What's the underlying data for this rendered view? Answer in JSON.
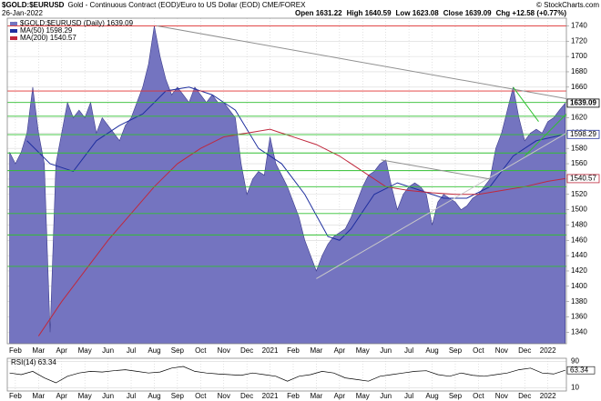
{
  "chart_data": {
    "type": "area",
    "symbol": "$GOLD:$EURUSD",
    "title": "Gold - Continuous Contract (EOD)/Euro to US Dollar (EOD) CME/FOREX",
    "source": "© StockCharts.com",
    "date": "26-Jan-2022",
    "quote": [
      "Open 1631.22",
      "High 1640.59",
      "Low 1623.08",
      "Close 1639.09",
      "Chg +12.58 (+0.77%)"
    ],
    "xlim": [
      0.65,
      24.8
    ],
    "xticks": [
      {
        "value": 1,
        "label": "Feb"
      },
      {
        "value": 2,
        "label": "Mar"
      },
      {
        "value": 3,
        "label": "Apr"
      },
      {
        "value": 4,
        "label": "May"
      },
      {
        "value": 5,
        "label": "Jun"
      },
      {
        "value": 6,
        "label": "Jul"
      },
      {
        "value": 7,
        "label": "Aug"
      },
      {
        "value": 8,
        "label": "Sep"
      },
      {
        "value": 9,
        "label": "Oct"
      },
      {
        "value": 10,
        "label": "Nov"
      },
      {
        "value": 11,
        "label": "Dec"
      },
      {
        "value": 12,
        "label": "2021"
      },
      {
        "value": 13,
        "label": "Feb"
      },
      {
        "value": 14,
        "label": "Mar"
      },
      {
        "value": 15,
        "label": "Apr"
      },
      {
        "value": 16,
        "label": "May"
      },
      {
        "value": 17,
        "label": "Jun"
      },
      {
        "value": 18,
        "label": "Jul"
      },
      {
        "value": 19,
        "label": "Aug"
      },
      {
        "value": 20,
        "label": "Sep"
      },
      {
        "value": 21,
        "label": "Oct"
      },
      {
        "value": 22,
        "label": "Nov"
      },
      {
        "value": 23,
        "label": "Dec"
      },
      {
        "value": 24,
        "label": "2022"
      }
    ],
    "ylim": [
      1325,
      1750
    ],
    "yticks": [
      1340,
      1360,
      1380,
      1400,
      1420,
      1440,
      1460,
      1480,
      1500,
      1520,
      1540,
      1560,
      1580,
      1600,
      1620,
      1640,
      1660,
      1680,
      1700,
      1720,
      1740
    ],
    "grid": true,
    "series": [
      {
        "name": "$GOLD:$EURUSD (Daily) 1639.09",
        "color": "#7474c0",
        "x": [
          0.75,
          1,
          1.25,
          1.5,
          1.75,
          2,
          2.25,
          2.5,
          2.75,
          3,
          3.25,
          3.5,
          3.75,
          4,
          4.25,
          4.5,
          4.75,
          5,
          5.25,
          5.5,
          5.75,
          6,
          6.25,
          6.5,
          6.75,
          7,
          7.25,
          7.5,
          7.75,
          8,
          8.25,
          8.5,
          8.75,
          9,
          9.25,
          9.5,
          9.75,
          10,
          10.25,
          10.5,
          10.75,
          11,
          11.25,
          11.5,
          11.75,
          12,
          12.25,
          12.5,
          12.75,
          13,
          13.25,
          13.5,
          13.75,
          14,
          14.25,
          14.5,
          14.75,
          15,
          15.25,
          15.5,
          15.75,
          16,
          16.25,
          16.5,
          16.75,
          17,
          17.25,
          17.5,
          17.75,
          18,
          18.25,
          18.5,
          18.75,
          19,
          19.25,
          19.5,
          19.75,
          20,
          20.25,
          20.5,
          20.75,
          21,
          21.25,
          21.5,
          21.75,
          22,
          22.25,
          22.5,
          22.75,
          23,
          23.25,
          23.5,
          23.75,
          24,
          24.25,
          24.5,
          24.75
        ],
        "values": [
          1575,
          1560,
          1575,
          1600,
          1660,
          1600,
          1560,
          1340,
          1560,
          1600,
          1640,
          1620,
          1630,
          1620,
          1640,
          1600,
          1620,
          1610,
          1600,
          1590,
          1610,
          1620,
          1640,
          1660,
          1690,
          1740,
          1700,
          1670,
          1650,
          1660,
          1650,
          1640,
          1660,
          1650,
          1640,
          1650,
          1640,
          1640,
          1630,
          1620,
          1560,
          1520,
          1540,
          1550,
          1545,
          1595,
          1560,
          1545,
          1530,
          1510,
          1490,
          1460,
          1440,
          1420,
          1440,
          1455,
          1465,
          1470,
          1475,
          1490,
          1510,
          1530,
          1545,
          1550,
          1560,
          1565,
          1530,
          1500,
          1520,
          1530,
          1535,
          1530,
          1520,
          1480,
          1510,
          1520,
          1515,
          1510,
          1500,
          1505,
          1515,
          1520,
          1530,
          1540,
          1580,
          1600,
          1630,
          1660,
          1620,
          1590,
          1600,
          1605,
          1600,
          1615,
          1620,
          1630,
          1639.09
        ]
      },
      {
        "name": "MA(50) 1598.29",
        "color": "#1f2f9f",
        "x": [
          1.5,
          2.5,
          3.5,
          4.5,
          5.5,
          6.5,
          7.5,
          8.5,
          9.5,
          10.5,
          11.5,
          12.5,
          13.5,
          14.5,
          15,
          15.5,
          16.5,
          17.5,
          18.5,
          19.5,
          20.5,
          21.5,
          22.5,
          23.5,
          24.75
        ],
        "values": [
          1590,
          1560,
          1550,
          1590,
          1610,
          1625,
          1655,
          1660,
          1650,
          1630,
          1580,
          1560,
          1520,
          1465,
          1460,
          1475,
          1520,
          1535,
          1525,
          1515,
          1515,
          1530,
          1570,
          1590,
          1598.29
        ]
      },
      {
        "name": "MA(200) 1540.57",
        "color": "#c0283c",
        "x": [
          2,
          3,
          4,
          5,
          6,
          7,
          8,
          9,
          10,
          11,
          12,
          12.5,
          13,
          14,
          15,
          16,
          17,
          18,
          19,
          20,
          21,
          22,
          23,
          24,
          24.75
        ],
        "values": [
          1335,
          1380,
          1420,
          1460,
          1495,
          1530,
          1560,
          1580,
          1595,
          1600,
          1605,
          1600,
          1595,
          1585,
          1570,
          1550,
          1530,
          1525,
          1522,
          1520,
          1520,
          1525,
          1530,
          1537,
          1540.57
        ]
      }
    ],
    "levels": [
      {
        "value": 1740,
        "color": "#e03030"
      },
      {
        "value": 1655,
        "color": "#e03030"
      },
      {
        "value": 1640,
        "color": "#30c030"
      },
      {
        "value": 1622,
        "color": "#30c030"
      },
      {
        "value": 1598,
        "color": "#30c030"
      },
      {
        "value": 1574,
        "color": "#30c030"
      },
      {
        "value": 1551,
        "color": "#30c030"
      },
      {
        "value": 1530,
        "color": "#30c030"
      },
      {
        "value": 1495,
        "color": "#30c030"
      },
      {
        "value": 1467,
        "color": "#30c030"
      },
      {
        "value": 1426,
        "color": "#30c030"
      }
    ],
    "trendlines": [
      {
        "x": [
          7.1,
          24.8
        ],
        "values": [
          1740,
          1645
        ],
        "color": "#909090"
      },
      {
        "x": [
          22.5,
          23.6
        ],
        "values": [
          1660,
          1615
        ],
        "color": "#30c030"
      },
      {
        "x": [
          14,
          24.8
        ],
        "values": [
          1410,
          1600
        ],
        "color": "#c8c8c8"
      },
      {
        "x": [
          16.8,
          21.5
        ],
        "values": [
          1565,
          1540
        ],
        "color": "#909090"
      },
      {
        "x": [
          23,
          24.8
        ],
        "values": [
          1570,
          1625
        ],
        "color": "#30c030"
      }
    ],
    "flags": [
      1639.09,
      1598.29,
      1540.57
    ],
    "rsi": {
      "name": "RSI(14) 63.34",
      "color": "#000000",
      "ylim": [
        0,
        100
      ],
      "yticks": [
        10,
        90
      ],
      "flag": 63.34,
      "x": [
        0.75,
        1.25,
        1.75,
        2.25,
        2.75,
        3.25,
        3.75,
        4.25,
        4.75,
        5.25,
        5.75,
        6.25,
        6.75,
        7.25,
        7.75,
        8.25,
        8.75,
        9.25,
        9.75,
        10.25,
        10.75,
        11.25,
        11.75,
        12.25,
        12.75,
        13.25,
        13.75,
        14.25,
        14.75,
        15.25,
        15.75,
        16.25,
        16.75,
        17.25,
        17.75,
        18.25,
        18.75,
        19.25,
        19.75,
        20.25,
        20.75,
        21.25,
        21.75,
        22.25,
        22.75,
        23.25,
        23.75,
        24.25,
        24.75
      ],
      "values": [
        55,
        50,
        60,
        40,
        25,
        45,
        55,
        60,
        58,
        62,
        65,
        60,
        55,
        58,
        70,
        75,
        60,
        55,
        52,
        50,
        48,
        55,
        50,
        45,
        30,
        45,
        50,
        60,
        55,
        40,
        35,
        30,
        45,
        50,
        55,
        60,
        62,
        50,
        45,
        55,
        48,
        45,
        50,
        55,
        65,
        70,
        55,
        52,
        63.34
      ]
    }
  }
}
